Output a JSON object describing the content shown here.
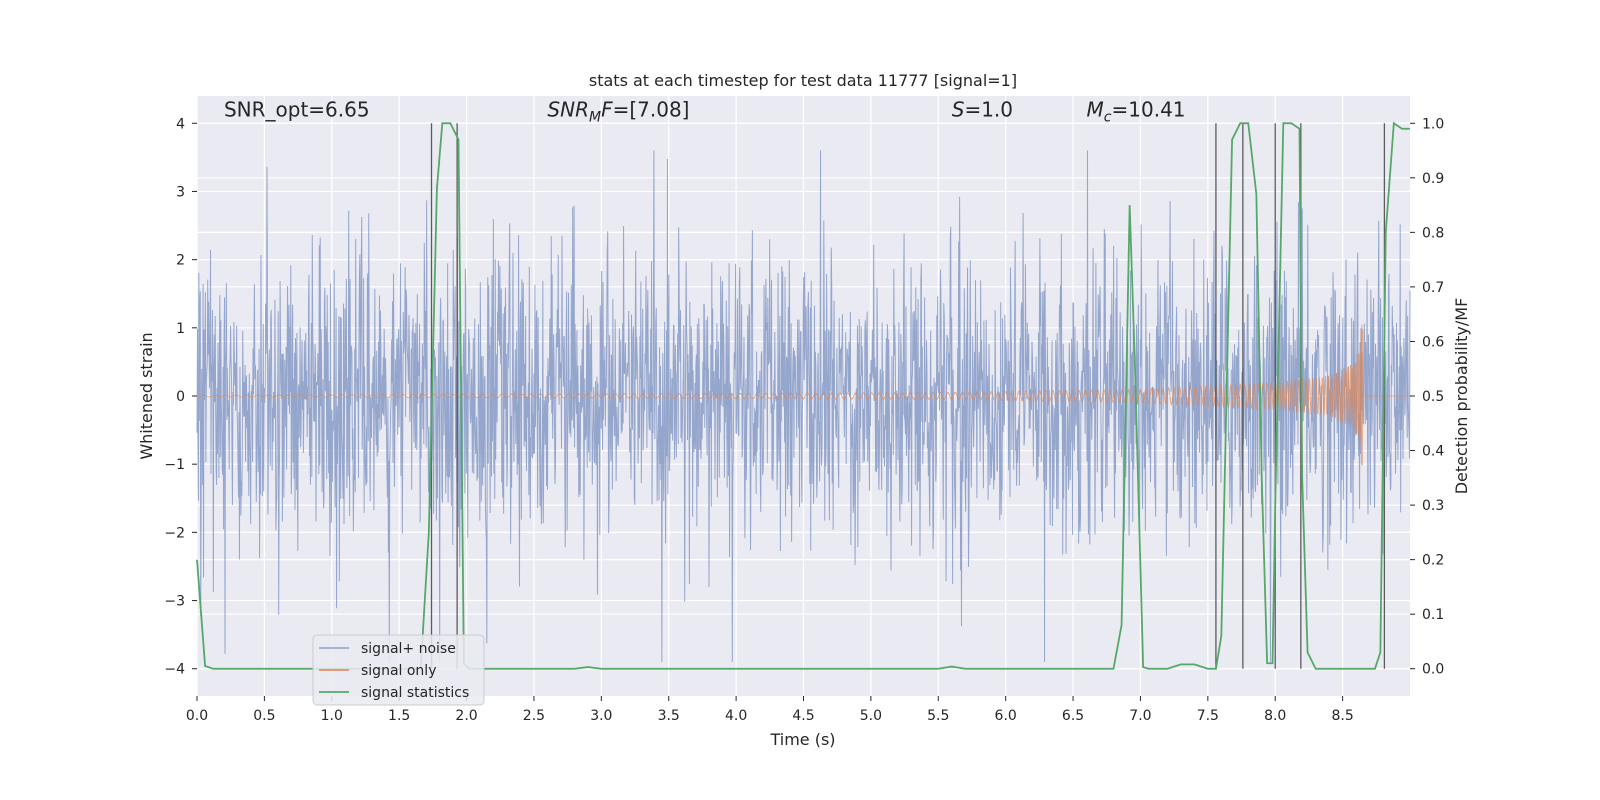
{
  "chart_data": {
    "type": "line",
    "title": "stats at each timestep for test data 11777 [signal=1]",
    "xlabel": "Time (s)",
    "ylabel_left": "Whitened strain",
    "ylabel_right": "Detection probability/MF",
    "xlim": [
      0.0,
      9.0
    ],
    "ylim_left": [
      -4.4,
      4.4
    ],
    "ylim_right": [
      -0.05,
      1.05
    ],
    "x_ticks": [
      "0.0",
      "0.5",
      "1.0",
      "1.5",
      "2.0",
      "2.5",
      "3.0",
      "3.5",
      "4.0",
      "4.5",
      "5.0",
      "5.5",
      "6.0",
      "6.5",
      "7.0",
      "7.5",
      "8.0",
      "8.5"
    ],
    "y_ticks_left": [
      "−4",
      "−3",
      "−2",
      "−1",
      "0",
      "1",
      "2",
      "3",
      "4"
    ],
    "y_ticks_right": [
      "0.0",
      "0.1",
      "0.2",
      "0.3",
      "0.4",
      "0.5",
      "0.6",
      "0.7",
      "0.8",
      "0.9",
      "1.0"
    ],
    "grid": true,
    "annotations": [
      {
        "text": "SNR_opt=6.65",
        "x": 0.2,
        "y": 4.1
      },
      {
        "text": "SNR_MF=[7.08]",
        "x": 2.6,
        "y": 4.1
      },
      {
        "text": "S=1.0",
        "x": 5.6,
        "y": 4.1
      },
      {
        "text": "M_c=10.41",
        "x": 6.6,
        "y": 4.1
      }
    ],
    "legend_position": "lower-left",
    "series": [
      {
        "name": "signal+ noise",
        "axis": "left",
        "color": "#8c9fc9",
        "description": "whitened noisy strain, roughly ±1 rms with spikes to about ±3.8",
        "time_range": [
          0.0,
          9.0
        ],
        "approx_range": [
          -3.9,
          3.6
        ]
      },
      {
        "name": "signal only",
        "axis": "left",
        "color": "#dd8452",
        "description": "chirp signal growing from ~0 to ~1.2 amplitude, merging near 8.65 s",
        "envelope": {
          "t": [
            0.0,
            5.5,
            7.0,
            8.0,
            8.4,
            8.6,
            8.65
          ],
          "amp": [
            0.01,
            0.05,
            0.1,
            0.2,
            0.3,
            0.5,
            1.15
          ]
        }
      },
      {
        "name": "signal statistics",
        "axis": "right",
        "color": "#55a868",
        "x": [
          0.0,
          0.06,
          0.12,
          0.2,
          1.6,
          1.66,
          1.72,
          1.78,
          1.82,
          1.88,
          1.94,
          1.98,
          2.02,
          2.8,
          2.9,
          3.0,
          5.5,
          5.6,
          5.7,
          6.8,
          6.86,
          6.92,
          6.96,
          7.02,
          7.06,
          7.2,
          7.3,
          7.4,
          7.5,
          7.56,
          7.6,
          7.68,
          7.74,
          7.8,
          7.86,
          7.9,
          7.94,
          7.98,
          8.0,
          8.06,
          8.12,
          8.18,
          8.2,
          8.24,
          8.3,
          8.4,
          8.74,
          8.78,
          8.82,
          8.88,
          8.94,
          9.0
        ],
        "y": [
          0.2,
          0.005,
          0.0,
          0.0,
          0.0,
          0.0,
          0.25,
          0.88,
          1.0,
          1.0,
          0.97,
          0.01,
          0.0,
          0.0,
          0.003,
          0.0,
          0.0,
          0.004,
          0.0,
          0.0,
          0.08,
          0.85,
          0.55,
          0.003,
          0.0,
          0.0,
          0.008,
          0.008,
          0.0,
          0.0,
          0.06,
          0.97,
          1.0,
          1.0,
          0.87,
          0.35,
          0.01,
          0.01,
          0.3,
          1.0,
          1.0,
          0.99,
          0.35,
          0.03,
          0.0,
          0.0,
          0.0,
          0.03,
          0.8,
          1.0,
          0.99,
          0.99
        ]
      }
    ],
    "vertical_lines": [
      1.74,
      1.93,
      7.56,
      7.76,
      8.0,
      8.19,
      8.81
    ]
  }
}
